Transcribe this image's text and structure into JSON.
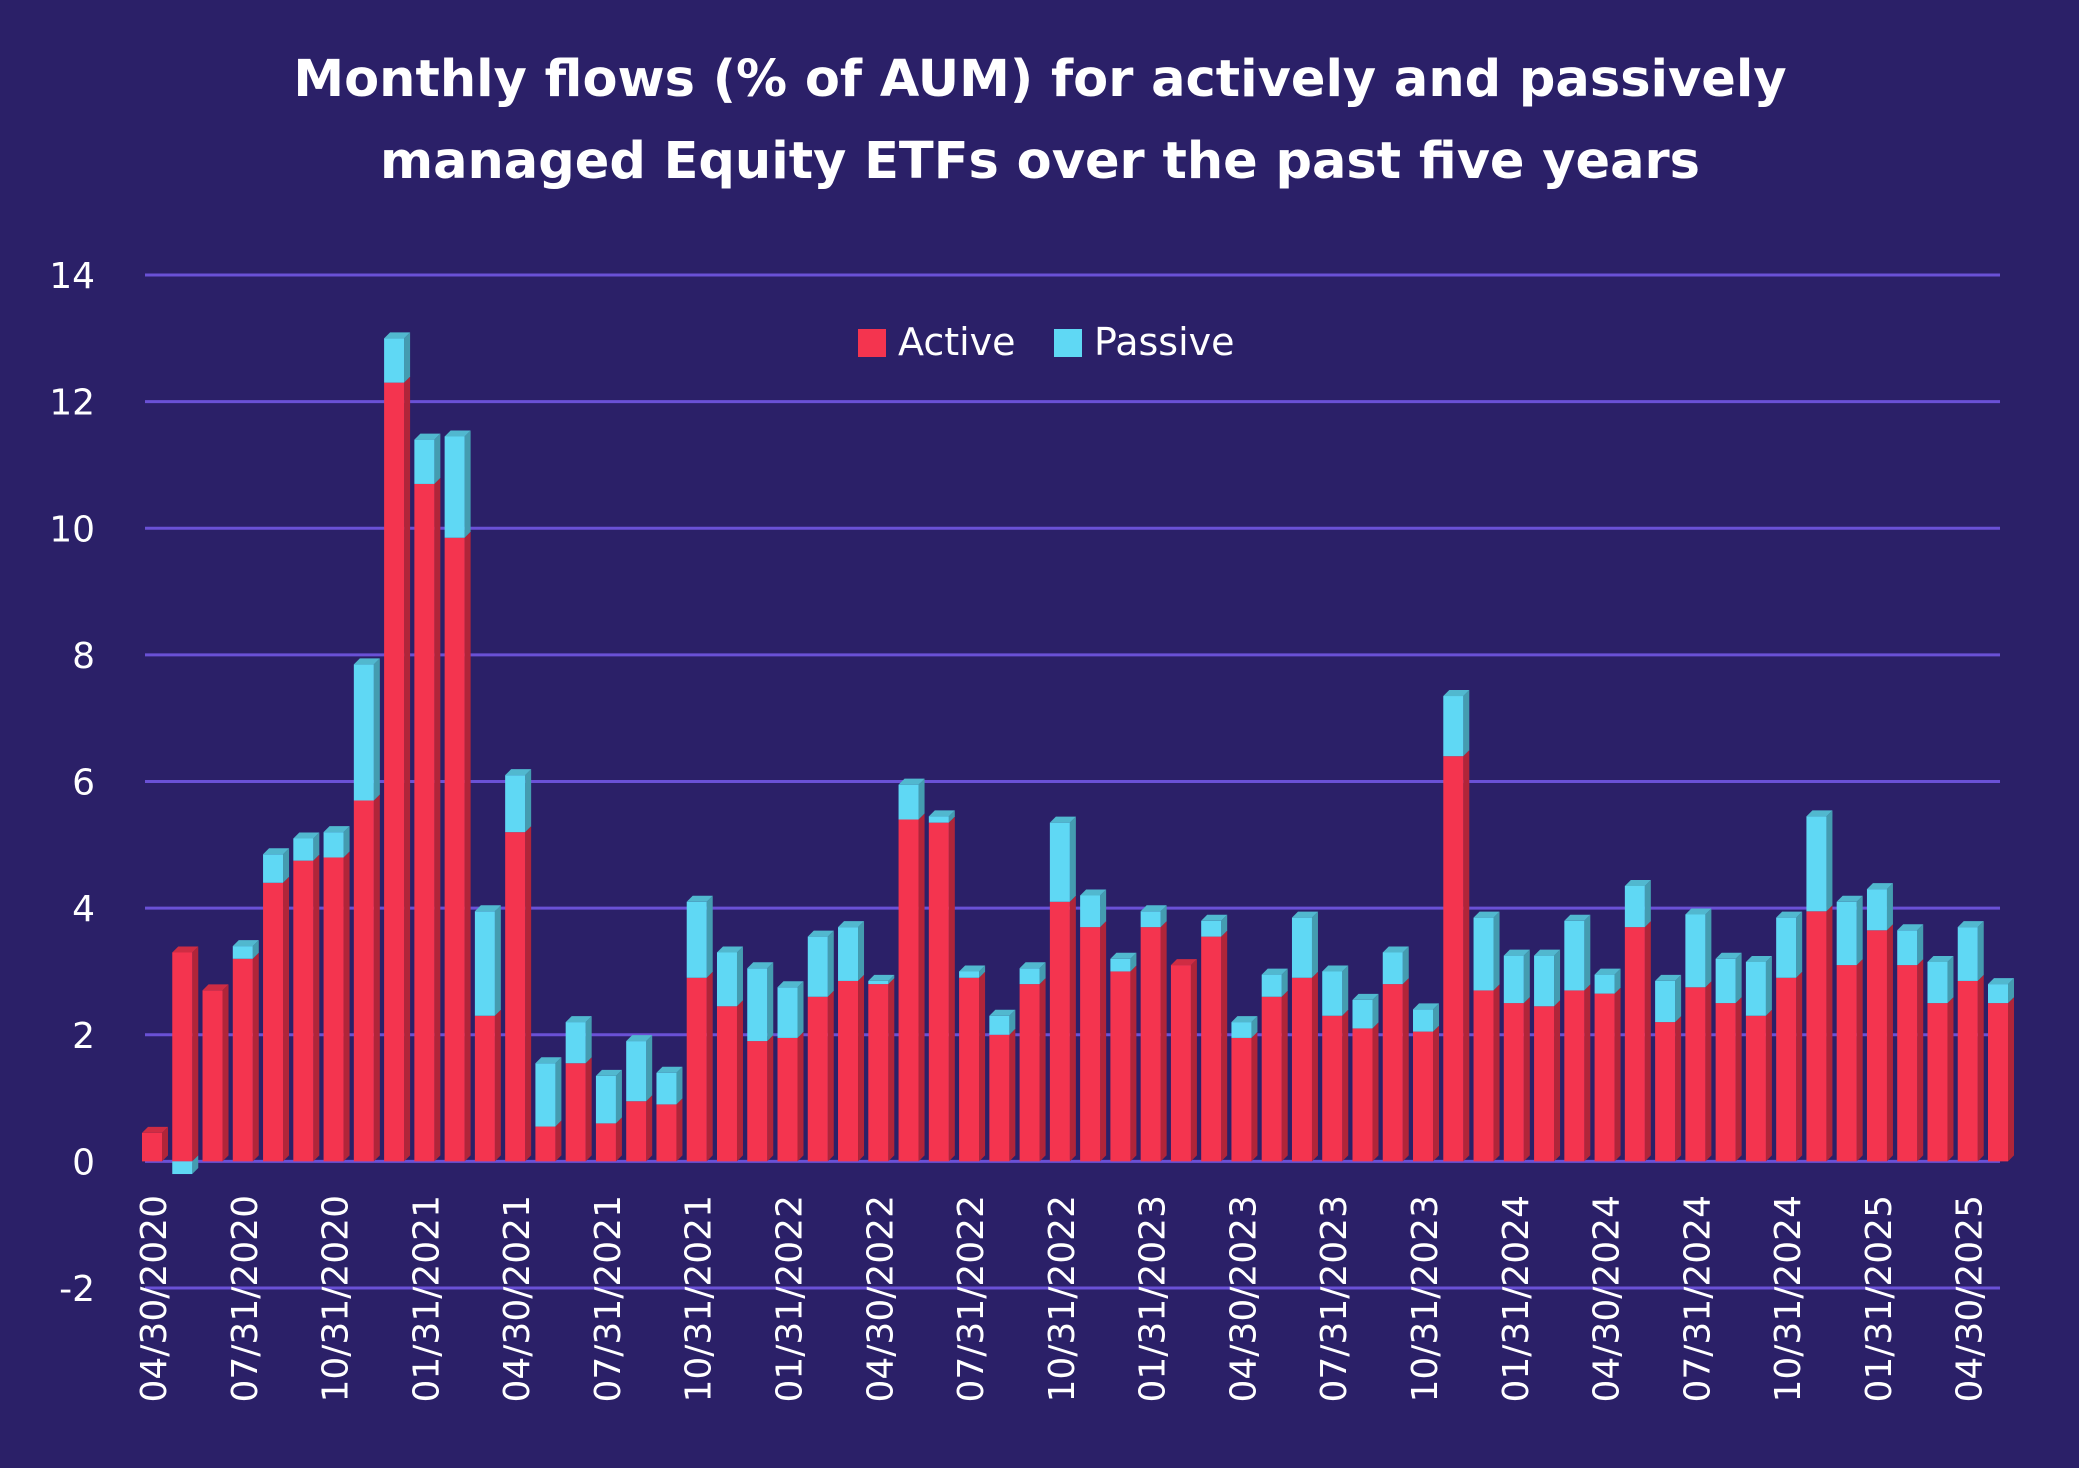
{
  "chart_data": {
    "type": "bar",
    "stacked": true,
    "title": "Monthly flows (% of AUM) for actively and passively managed Equity ETFs over the past five years",
    "title_lines": [
      "Monthly flows (% of AUM) for actively and passively",
      "managed Equity ETFs over the past five years"
    ],
    "xlabel": "",
    "ylabel": "",
    "ylim": [
      -2,
      14
    ],
    "yticks": [
      -2,
      0,
      2,
      4,
      6,
      8,
      10,
      12,
      14
    ],
    "grid": true,
    "legend_position": "top-center",
    "x_tick_labels": [
      {
        "index": 0,
        "label": "04/30/2020"
      },
      {
        "index": 3,
        "label": "07/31/2020"
      },
      {
        "index": 6,
        "label": "10/31/2020"
      },
      {
        "index": 9,
        "label": "01/31/2021"
      },
      {
        "index": 12,
        "label": "04/30/2021"
      },
      {
        "index": 15,
        "label": "07/31/2021"
      },
      {
        "index": 18,
        "label": "10/31/2021"
      },
      {
        "index": 21,
        "label": "01/31/2022"
      },
      {
        "index": 24,
        "label": "04/30/2022"
      },
      {
        "index": 27,
        "label": "07/31/2022"
      },
      {
        "index": 30,
        "label": "10/31/2022"
      },
      {
        "index": 33,
        "label": "01/31/2023"
      },
      {
        "index": 36,
        "label": "04/30/2023"
      },
      {
        "index": 39,
        "label": "07/31/2023"
      },
      {
        "index": 42,
        "label": "10/31/2023"
      },
      {
        "index": 45,
        "label": "01/31/2024"
      },
      {
        "index": 48,
        "label": "04/30/2024"
      },
      {
        "index": 51,
        "label": "07/31/2024"
      },
      {
        "index": 54,
        "label": "10/31/2024"
      },
      {
        "index": 57,
        "label": "01/31/2025"
      },
      {
        "index": 60,
        "label": "04/30/2025"
      }
    ],
    "series": [
      {
        "name": "Active",
        "color": "#f4344f",
        "values": [
          0.45,
          3.3,
          2.7,
          3.2,
          4.4,
          4.75,
          4.8,
          5.7,
          12.3,
          10.7,
          9.85,
          2.3,
          5.2,
          0.55,
          1.55,
          0.6,
          0.95,
          0.9,
          2.9,
          2.45,
          1.9,
          1.95,
          2.6,
          2.85,
          2.8,
          5.4,
          5.35,
          2.9,
          2.0,
          2.8,
          4.1,
          3.7,
          3.0,
          3.7,
          3.1,
          3.55,
          1.95,
          2.6,
          2.9,
          2.3,
          2.1,
          2.8,
          2.05,
          6.4,
          2.7,
          2.5,
          2.45,
          2.7,
          2.65,
          3.7,
          2.2,
          2.75,
          2.5,
          2.3,
          2.9,
          3.95,
          3.1,
          3.65,
          3.1,
          2.5,
          2.85,
          2.5
        ]
      },
      {
        "name": "Passive",
        "color": "#5fd8f4",
        "values": [
          0.0,
          -0.2,
          0.0,
          0.2,
          0.45,
          0.35,
          0.4,
          2.15,
          0.7,
          0.7,
          1.6,
          1.65,
          0.9,
          1.0,
          0.65,
          0.75,
          0.95,
          0.5,
          1.2,
          0.85,
          1.15,
          0.8,
          0.95,
          0.85,
          0.05,
          0.55,
          0.1,
          0.1,
          0.3,
          0.25,
          1.25,
          0.5,
          0.2,
          0.25,
          0.0,
          0.25,
          0.25,
          0.35,
          0.95,
          0.7,
          0.45,
          0.5,
          0.35,
          0.95,
          1.15,
          0.75,
          0.8,
          1.1,
          0.3,
          0.65,
          0.65,
          1.15,
          0.7,
          0.85,
          0.95,
          1.5,
          1.0,
          0.65,
          0.55,
          0.65,
          0.85,
          0.3
        ]
      }
    ]
  }
}
